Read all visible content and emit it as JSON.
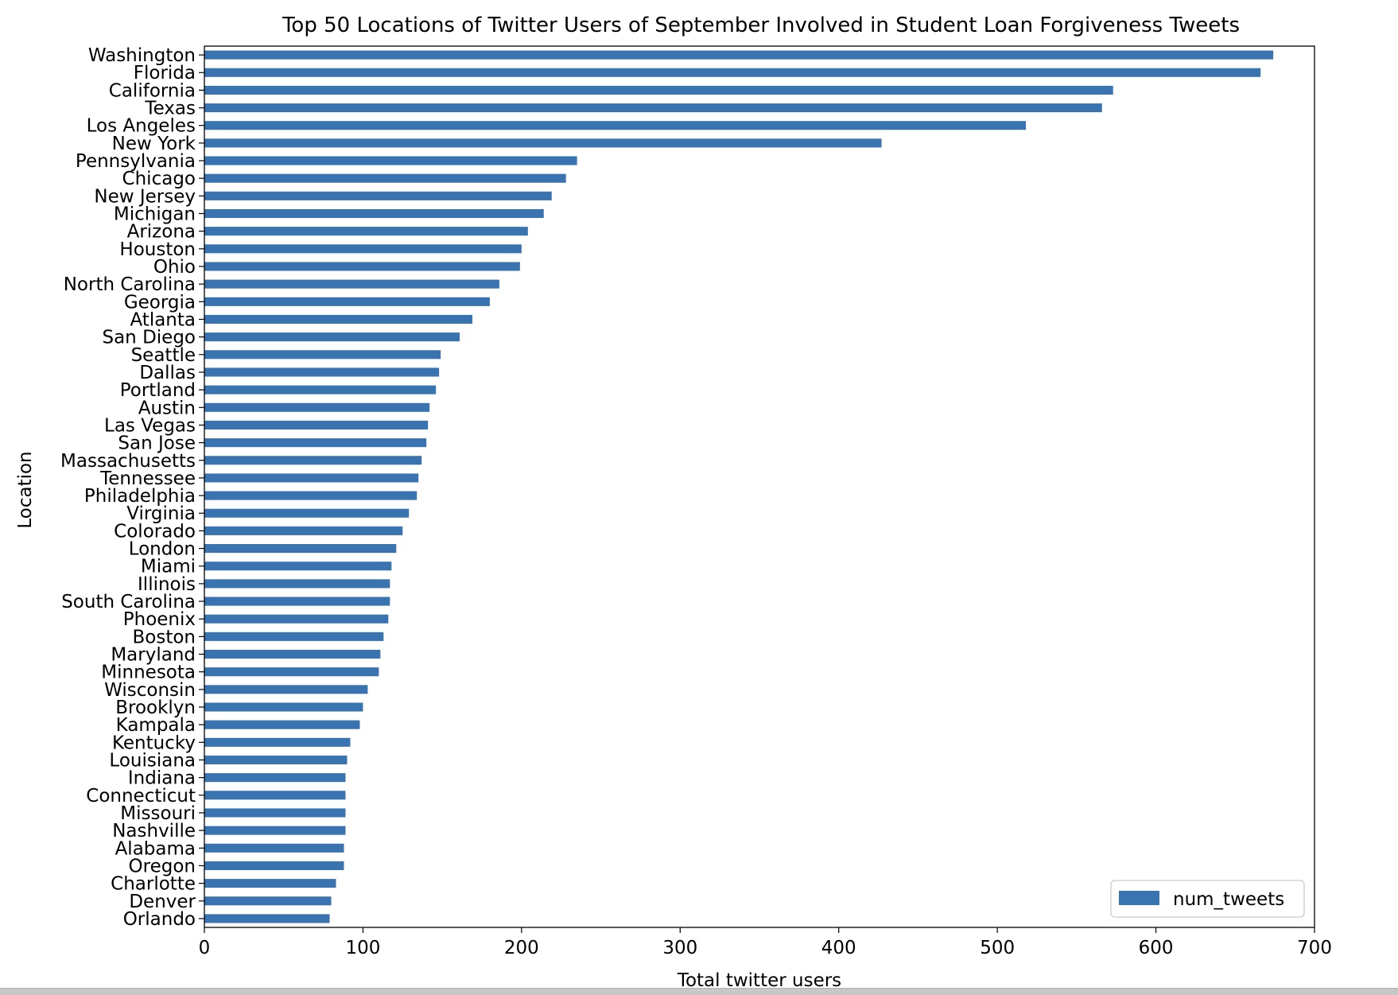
{
  "chart_data": {
    "type": "bar",
    "orientation": "horizontal",
    "title": "Top 50 Locations of Twitter Users of September Involved in Student Loan Forgiveness Tweets",
    "xlabel": "Total twitter users",
    "ylabel": "Location",
    "xlim": [
      0,
      700
    ],
    "xticks": [
      0,
      100,
      200,
      300,
      400,
      500,
      600,
      700
    ],
    "grid": false,
    "legend_position": "lower-right",
    "series": [
      {
        "name": "num_tweets",
        "color": "#3a74b0",
        "categories": [
          "Washington",
          "Florida",
          "California",
          "Texas",
          "Los Angeles",
          "New York",
          "Pennsylvania",
          "Chicago",
          "New Jersey",
          "Michigan",
          "Arizona",
          "Houston",
          "Ohio",
          "North Carolina",
          "Georgia",
          "Atlanta",
          "San Diego",
          "Seattle",
          "Dallas",
          "Portland",
          "Austin",
          "Las Vegas",
          "San Jose",
          "Massachusetts",
          "Tennessee",
          "Philadelphia",
          "Virginia",
          "Colorado",
          "London",
          "Miami",
          "Illinois",
          "South Carolina",
          "Phoenix",
          "Boston",
          "Maryland",
          "Minnesota",
          "Wisconsin",
          "Brooklyn",
          "Kampala",
          "Kentucky",
          "Louisiana",
          "Indiana",
          "Connecticut",
          "Missouri",
          "Nashville",
          "Alabama",
          "Oregon",
          "Charlotte",
          "Denver",
          "Orlando"
        ],
        "values": [
          674,
          666,
          573,
          566,
          518,
          427,
          235,
          228,
          219,
          214,
          204,
          200,
          199,
          186,
          180,
          169,
          161,
          149,
          148,
          146,
          142,
          141,
          140,
          137,
          135,
          134,
          129,
          125,
          121,
          118,
          117,
          117,
          116,
          113,
          111,
          110,
          103,
          100,
          98,
          92,
          90,
          89,
          89,
          89,
          89,
          88,
          88,
          83,
          80,
          79
        ]
      }
    ]
  }
}
